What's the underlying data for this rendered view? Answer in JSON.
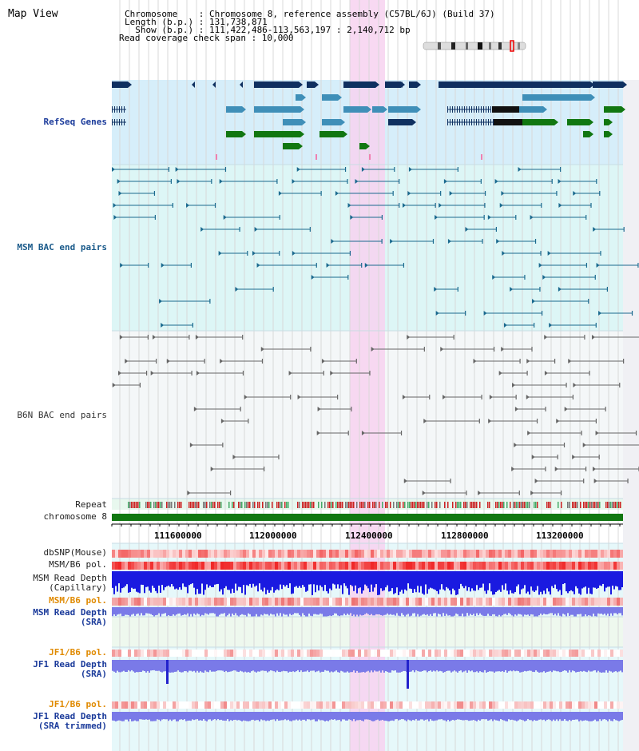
{
  "header": {
    "title": "Map View",
    "info_lines": [
      "Chromosome    : Chromosome 8, reference assembly (C57BL/6J) (Build 37)",
      "Length (b.p.) : 131,738,871",
      "  Show (b.p.) : 111,422,486-113,563,197 : 2,140,712 bp",
      "Read coverage check span : 10,000"
    ]
  },
  "tracks": {
    "refseq": "RefSeq Genes",
    "msm_bac": "MSM BAC end pairs",
    "b6n_bac": "B6N BAC end pairs",
    "repeat": "Repeat",
    "chromosome": "chromosome 8",
    "dbsnp": "dbSNP(Mouse)",
    "msm_b6_pol_1": "MSM/B6 pol.",
    "msm_depth_cap_1": "MSM Read Depth",
    "msm_depth_cap_2": "(Capillary)",
    "msm_b6_pol_2": "MSM/B6 pol.",
    "msm_depth_sra_1": "MSM Read Depth",
    "msm_depth_sra_2": "(SRA)",
    "jf1_b6_pol_1": "JF1/B6 pol.",
    "jf1_depth_1": "JF1 Read Depth",
    "jf1_depth_2": "(SRA)",
    "jf1_b6_pol_2": "JF1/B6 pol.",
    "jf1_trim_1": "JF1 Read Depth",
    "jf1_trim_2": "(SRA trimmed)"
  },
  "axis": {
    "ticks": [
      "111600000",
      "112000000",
      "112400000",
      "112800000",
      "113200000"
    ]
  },
  "colors": {
    "highlight": "#f7d2f0",
    "refseq_bg": "#d6eefa",
    "msm_bg": "#ddf6f6",
    "navy": "#0f3060",
    "steel": "#3f8fb8",
    "green": "#117711",
    "chrom_green": "#117711"
  }
}
